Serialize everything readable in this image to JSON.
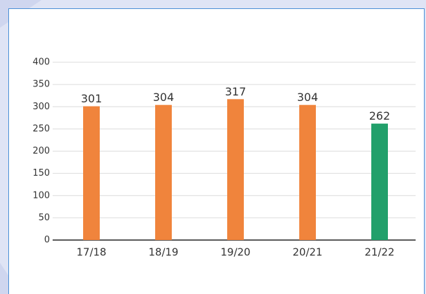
{
  "chart_data": {
    "type": "bar",
    "categories": [
      "17/18",
      "18/19",
      "19/20",
      "20/21",
      "21/22"
    ],
    "values": [
      301,
      304,
      317,
      304,
      262
    ],
    "colors": [
      "#f0843c",
      "#f0843c",
      "#f0843c",
      "#f0843c",
      "#22a06b"
    ],
    "ylim": [
      0,
      400
    ],
    "yticks": [
      0,
      50,
      100,
      150,
      200,
      250,
      300,
      350,
      400
    ],
    "grid": true
  }
}
